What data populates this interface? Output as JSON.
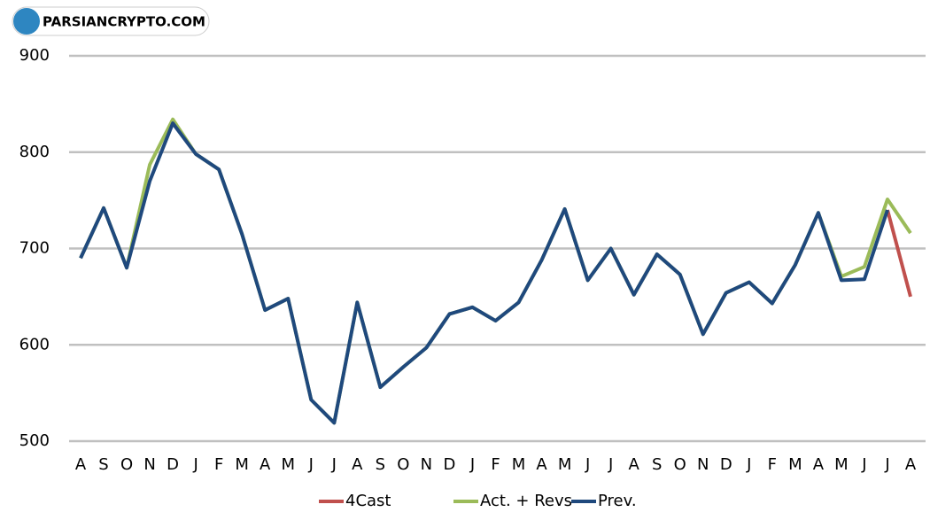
{
  "watermark": "PARSIANCRYPTO.COM",
  "chart_data": {
    "type": "line",
    "categories": [
      "A",
      "S",
      "O",
      "N",
      "D",
      "J",
      "F",
      "M",
      "A",
      "M",
      "J",
      "J",
      "A",
      "S",
      "O",
      "N",
      "D",
      "J",
      "F",
      "M",
      "A",
      "M",
      "J",
      "J",
      "A",
      "S",
      "O",
      "N",
      "D",
      "J",
      "F",
      "M",
      "A",
      "M",
      "J",
      "J",
      "A"
    ],
    "series": [
      {
        "name": "4Cast",
        "color": "#c0504d",
        "values": [
          null,
          null,
          null,
          null,
          null,
          null,
          null,
          null,
          null,
          null,
          null,
          null,
          null,
          null,
          null,
          null,
          null,
          null,
          null,
          null,
          null,
          null,
          null,
          null,
          null,
          null,
          null,
          null,
          null,
          null,
          null,
          null,
          null,
          null,
          null,
          740,
          650
        ]
      },
      {
        "name": "Act. + Revs",
        "color": "#9bbb59",
        "values": [
          690,
          742,
          680,
          787,
          834,
          798,
          782,
          715,
          636,
          648,
          543,
          519,
          644,
          556,
          577,
          597,
          632,
          639,
          625,
          644,
          688,
          741,
          667,
          700,
          652,
          694,
          673,
          611,
          654,
          665,
          643,
          683,
          737,
          671,
          681,
          751,
          716
        ]
      },
      {
        "name": "Prev.",
        "color": "#1f497d",
        "values": [
          690,
          742,
          680,
          770,
          830,
          798,
          782,
          715,
          636,
          648,
          543,
          519,
          644,
          556,
          577,
          597,
          632,
          639,
          625,
          644,
          688,
          741,
          667,
          700,
          652,
          694,
          673,
          611,
          654,
          665,
          643,
          683,
          737,
          667,
          668,
          740,
          null
        ]
      }
    ],
    "ylim": [
      500,
      900
    ],
    "yticks": [
      500,
      600,
      700,
      800,
      900
    ],
    "grid": true
  }
}
